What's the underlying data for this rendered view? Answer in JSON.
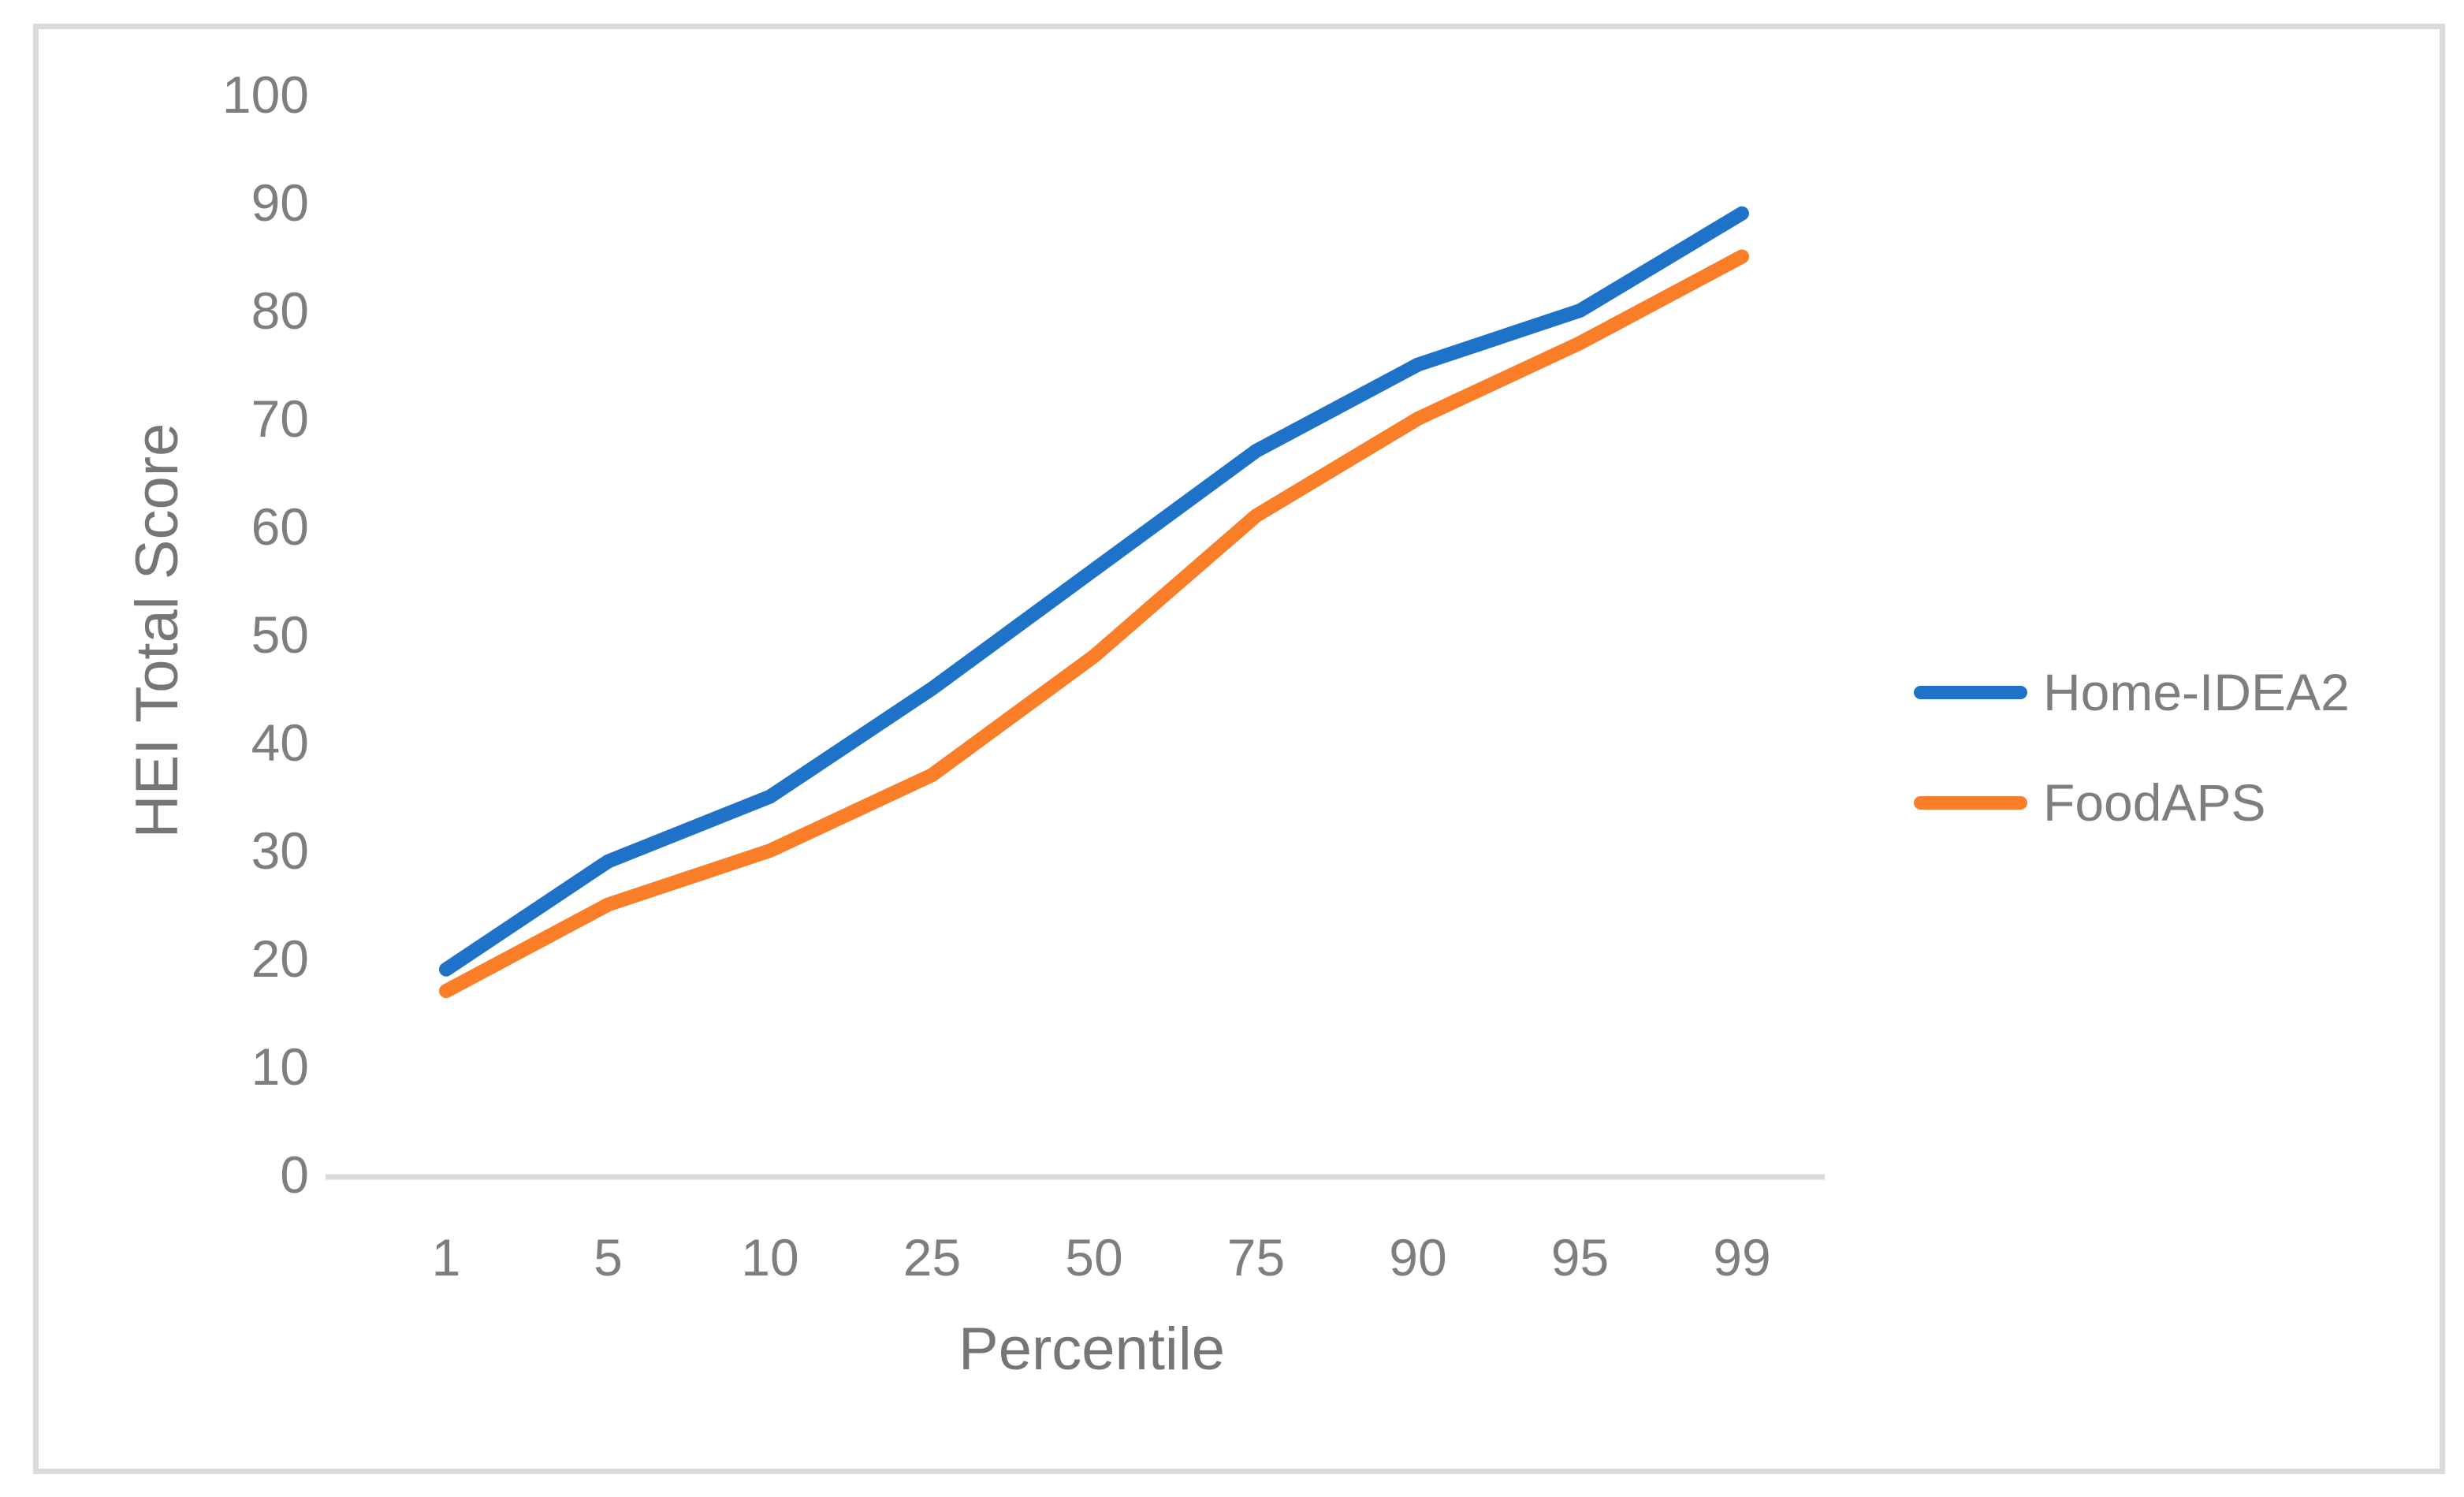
{
  "chart_data": {
    "type": "line",
    "title": "",
    "xlabel": "Percentile",
    "ylabel": "HEI Total Score",
    "categories": [
      "1",
      "5",
      "10",
      "25",
      "50",
      "75",
      "90",
      "95",
      "99"
    ],
    "y_ticks": [
      0,
      10,
      20,
      30,
      40,
      50,
      60,
      70,
      80,
      90,
      100
    ],
    "ylim": [
      0,
      100
    ],
    "grid": false,
    "legend_position": "right",
    "axis_line_color": "#d9d9d9",
    "tick_label_color": "#7e7e7e",
    "series": [
      {
        "name": "Home-IDEA2",
        "color": "#1e73c8",
        "values": [
          19,
          29,
          35,
          45,
          56,
          67,
          75,
          80,
          89
        ]
      },
      {
        "name": "FoodAPS",
        "color": "#fa7d28",
        "values": [
          17,
          25,
          30,
          37,
          48,
          61,
          70,
          77,
          85
        ]
      }
    ]
  }
}
